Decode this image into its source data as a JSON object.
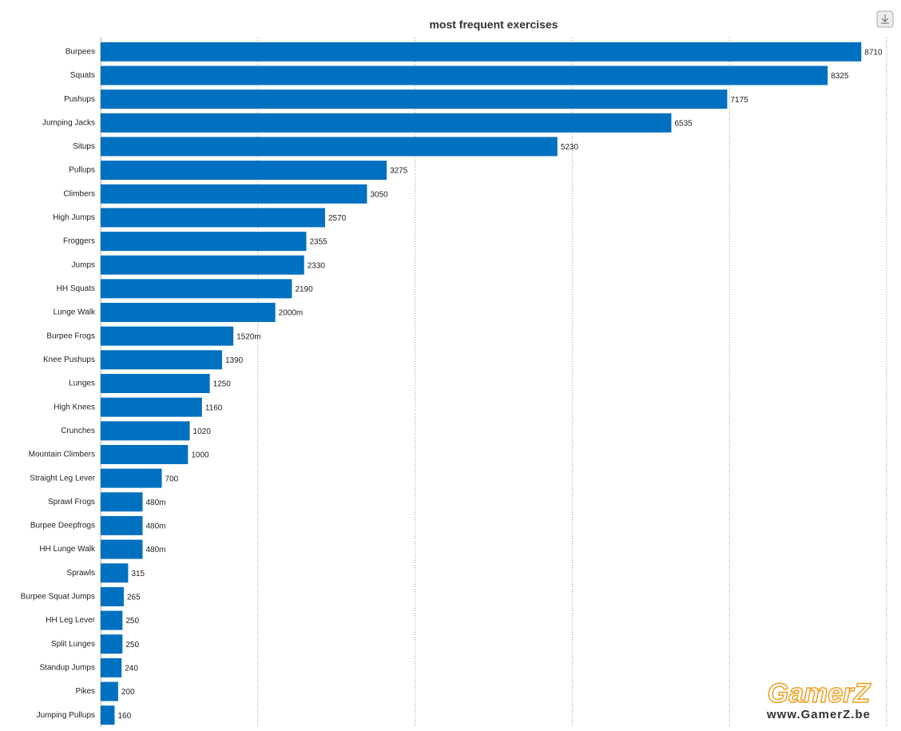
{
  "chart_data": {
    "type": "hbar",
    "title": "most frequent exercises",
    "categories": [
      "Burpees",
      "Squats",
      "Pushups",
      "Jumping Jacks",
      "Situps",
      "Pullups",
      "Climbers",
      "High Jumps",
      "Froggers",
      "Jumps",
      "HH Squats",
      "Lunge Walk",
      "Burpee Frogs",
      "Knee Pushups",
      "Lunges",
      "High Knees",
      "Crunches",
      "Mountain Climbers",
      "Straight Leg Lever",
      "Sprawl Frogs",
      "Burpee Deepfrogs",
      "HH Lunge Walk",
      "Sprawls",
      "Burpee Squat Jumps",
      "HH Leg Lever",
      "Split Lunges",
      "Standup Jumps",
      "Pikes",
      "Jumping Pullups"
    ],
    "values": [
      8710,
      8325,
      7175,
      6535,
      5230,
      3275,
      3050,
      2570,
      2355,
      2330,
      2190,
      2000,
      1520,
      1390,
      1250,
      1160,
      1020,
      1000,
      700,
      480,
      480,
      480,
      315,
      265,
      250,
      250,
      240,
      200,
      160
    ],
    "value_labels": [
      "8710",
      "8325",
      "7175",
      "6535",
      "5230",
      "3275",
      "3050",
      "2570",
      "2355",
      "2330",
      "2190",
      "2000m",
      "1520m",
      "1390",
      "1250",
      "1160",
      "1020",
      "1000",
      "700",
      "480m",
      "480m",
      "480m",
      "315",
      "265",
      "250",
      "250",
      "240",
      "200",
      "160"
    ],
    "color": "#0070c0",
    "xlim": [
      0,
      9000
    ],
    "xticks": [
      0,
      1800,
      3600,
      5400,
      7200,
      9000
    ],
    "grid": true
  },
  "watermark": {
    "logo": "GamerZ",
    "url": "www.GamerZ.be"
  }
}
